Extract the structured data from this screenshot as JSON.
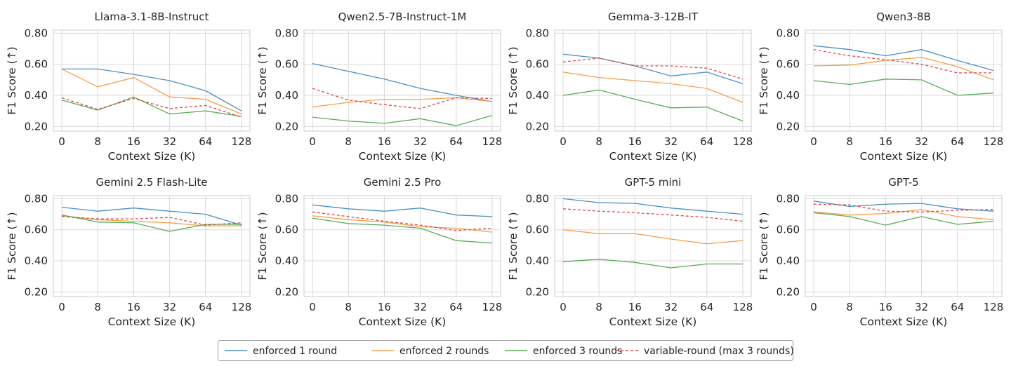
{
  "chart_data": [
    {
      "type": "line",
      "title": "Llama-3.1-8B-Instruct",
      "xlabel": "Context Size (K)",
      "ylabel": "F1 Score (↑)",
      "categories": [
        "0",
        "8",
        "16",
        "32",
        "64",
        "128"
      ],
      "ylim": [
        0.17,
        0.82
      ],
      "yticks": [
        "0.20",
        "0.40",
        "0.60",
        "0.80"
      ],
      "series": [
        {
          "name": "enforced 1 round",
          "values": [
            0.57,
            0.57,
            0.535,
            0.495,
            0.43,
            0.3
          ]
        },
        {
          "name": "enforced 2 rounds",
          "values": [
            0.57,
            0.455,
            0.515,
            0.39,
            0.375,
            0.28
          ]
        },
        {
          "name": "enforced 3 rounds",
          "values": [
            0.37,
            0.305,
            0.39,
            0.28,
            0.3,
            0.265
          ]
        },
        {
          "name": "variable-round (max 3 rounds)",
          "values": [
            0.385,
            0.31,
            0.38,
            0.315,
            0.335,
            0.26
          ]
        }
      ]
    },
    {
      "type": "line",
      "title": "Qwen2.5-7B-Instruct-1M",
      "xlabel": "Context Size (K)",
      "ylabel": "F1 Score (↑)",
      "categories": [
        "0",
        "8",
        "16",
        "32",
        "64",
        "128"
      ],
      "ylim": [
        0.17,
        0.82
      ],
      "yticks": [
        "0.20",
        "0.40",
        "0.60",
        "0.80"
      ],
      "series": [
        {
          "name": "enforced 1 round",
          "values": [
            0.605,
            0.555,
            0.505,
            0.445,
            0.4,
            0.36
          ]
        },
        {
          "name": "enforced 2 rounds",
          "values": [
            0.325,
            0.355,
            0.375,
            0.375,
            0.385,
            0.36
          ]
        },
        {
          "name": "enforced 3 rounds",
          "values": [
            0.26,
            0.235,
            0.22,
            0.25,
            0.205,
            0.27
          ]
        },
        {
          "name": "variable-round (max 3 rounds)",
          "values": [
            0.445,
            0.37,
            0.34,
            0.315,
            0.385,
            0.38
          ]
        }
      ]
    },
    {
      "type": "line",
      "title": "Gemma-3-12B-IT",
      "xlabel": "Context Size (K)",
      "ylabel": "F1 Score (↑)",
      "categories": [
        "0",
        "8",
        "16",
        "32",
        "64",
        "128"
      ],
      "ylim": [
        0.17,
        0.82
      ],
      "yticks": [
        "0.20",
        "0.40",
        "0.60",
        "0.80"
      ],
      "series": [
        {
          "name": "enforced 1 round",
          "values": [
            0.665,
            0.64,
            0.59,
            0.525,
            0.55,
            0.475
          ]
        },
        {
          "name": "enforced 2 rounds",
          "values": [
            0.55,
            0.515,
            0.495,
            0.475,
            0.445,
            0.355
          ]
        },
        {
          "name": "enforced 3 rounds",
          "values": [
            0.4,
            0.435,
            0.375,
            0.32,
            0.325,
            0.235
          ]
        },
        {
          "name": "variable-round (max 3 rounds)",
          "values": [
            0.615,
            0.64,
            0.59,
            0.59,
            0.575,
            0.505
          ]
        }
      ]
    },
    {
      "type": "line",
      "title": "Qwen3-8B",
      "xlabel": "Context Size (K)",
      "ylabel": "F1 Score (↑)",
      "categories": [
        "0",
        "8",
        "16",
        "32",
        "64",
        "128"
      ],
      "ylim": [
        0.17,
        0.82
      ],
      "yticks": [
        "0.20",
        "0.40",
        "0.60",
        "0.80"
      ],
      "series": [
        {
          "name": "enforced 1 round",
          "values": [
            0.72,
            0.695,
            0.655,
            0.695,
            0.625,
            0.56
          ]
        },
        {
          "name": "enforced 2 rounds",
          "values": [
            0.59,
            0.595,
            0.625,
            0.645,
            0.585,
            0.5
          ]
        },
        {
          "name": "enforced 3 rounds",
          "values": [
            0.495,
            0.47,
            0.505,
            0.5,
            0.4,
            0.415
          ]
        },
        {
          "name": "variable-round (max 3 rounds)",
          "values": [
            0.695,
            0.655,
            0.63,
            0.6,
            0.545,
            0.545
          ]
        }
      ]
    },
    {
      "type": "line",
      "title": "Gemini 2.5 Flash-Lite",
      "xlabel": "Context Size (K)",
      "ylabel": "F1 Score (↑)",
      "categories": [
        "0",
        "8",
        "16",
        "32",
        "64",
        "128"
      ],
      "ylim": [
        0.17,
        0.82
      ],
      "yticks": [
        "0.20",
        "0.40",
        "0.60",
        "0.80"
      ],
      "series": [
        {
          "name": "enforced 1 round",
          "values": [
            0.745,
            0.72,
            0.74,
            0.72,
            0.7,
            0.63
          ]
        },
        {
          "name": "enforced 2 rounds",
          "values": [
            0.69,
            0.665,
            0.655,
            0.645,
            0.625,
            0.625
          ]
        },
        {
          "name": "enforced 3 rounds",
          "values": [
            0.695,
            0.65,
            0.645,
            0.59,
            0.635,
            0.635
          ]
        },
        {
          "name": "variable-round (max 3 rounds)",
          "values": [
            0.685,
            0.67,
            0.67,
            0.68,
            0.63,
            0.645
          ]
        }
      ]
    },
    {
      "type": "line",
      "title": "Gemini 2.5 Pro",
      "xlabel": "Context Size (K)",
      "ylabel": "F1 Score (↑)",
      "categories": [
        "0",
        "8",
        "16",
        "32",
        "64",
        "128"
      ],
      "ylim": [
        0.17,
        0.82
      ],
      "yticks": [
        "0.20",
        "0.40",
        "0.60",
        "0.80"
      ],
      "series": [
        {
          "name": "enforced 1 round",
          "values": [
            0.76,
            0.735,
            0.72,
            0.74,
            0.695,
            0.685
          ]
        },
        {
          "name": "enforced 2 rounds",
          "values": [
            0.69,
            0.665,
            0.65,
            0.62,
            0.61,
            0.585
          ]
        },
        {
          "name": "enforced 3 rounds",
          "values": [
            0.675,
            0.64,
            0.63,
            0.61,
            0.53,
            0.515
          ]
        },
        {
          "name": "variable-round (max 3 rounds)",
          "values": [
            0.715,
            0.685,
            0.655,
            0.63,
            0.595,
            0.61
          ]
        }
      ]
    },
    {
      "type": "line",
      "title": "GPT-5 mini",
      "xlabel": "Context Size (K)",
      "ylabel": "F1 Score (↑)",
      "categories": [
        "0",
        "8",
        "16",
        "32",
        "64",
        "128"
      ],
      "ylim": [
        0.17,
        0.82
      ],
      "yticks": [
        "0.20",
        "0.40",
        "0.60",
        "0.80"
      ],
      "series": [
        {
          "name": "enforced 1 round",
          "values": [
            0.8,
            0.775,
            0.77,
            0.74,
            0.72,
            0.7
          ]
        },
        {
          "name": "enforced 2 rounds",
          "values": [
            0.6,
            0.575,
            0.575,
            0.54,
            0.51,
            0.53
          ]
        },
        {
          "name": "enforced 3 rounds",
          "values": [
            0.395,
            0.41,
            0.39,
            0.355,
            0.38,
            0.38
          ]
        },
        {
          "name": "variable-round (max 3 rounds)",
          "values": [
            0.735,
            0.72,
            0.71,
            0.695,
            0.68,
            0.655
          ]
        }
      ]
    },
    {
      "type": "line",
      "title": "GPT-5",
      "xlabel": "Context Size (K)",
      "ylabel": "F1 Score (↑)",
      "categories": [
        "0",
        "8",
        "16",
        "32",
        "64",
        "128"
      ],
      "ylim": [
        0.17,
        0.82
      ],
      "yticks": [
        "0.20",
        "0.40",
        "0.60",
        "0.80"
      ],
      "series": [
        {
          "name": "enforced 1 round",
          "values": [
            0.785,
            0.75,
            0.765,
            0.77,
            0.735,
            0.72
          ]
        },
        {
          "name": "enforced 2 rounds",
          "values": [
            0.715,
            0.695,
            0.705,
            0.73,
            0.685,
            0.665
          ]
        },
        {
          "name": "enforced 3 rounds",
          "values": [
            0.71,
            0.685,
            0.63,
            0.685,
            0.635,
            0.655
          ]
        },
        {
          "name": "variable-round (max 3 rounds)",
          "values": [
            0.765,
            0.76,
            0.72,
            0.715,
            0.725,
            0.73
          ]
        }
      ]
    }
  ],
  "legend": {
    "items": [
      {
        "name": "enforced 1 round",
        "color": "#4a90c4",
        "dashed": false
      },
      {
        "name": "enforced 2 rounds",
        "color": "#f5a04a",
        "dashed": false
      },
      {
        "name": "enforced 3 rounds",
        "color": "#55ad55",
        "dashed": false
      },
      {
        "name": "variable-round (max 3 rounds)",
        "color": "#d9484a",
        "dashed": true
      }
    ]
  }
}
